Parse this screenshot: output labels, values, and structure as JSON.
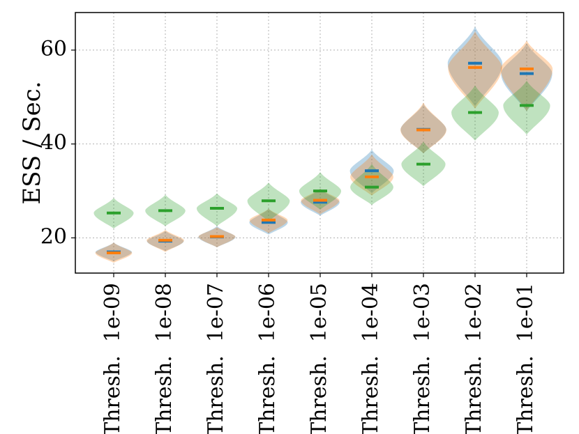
{
  "chart_data": {
    "type": "violin",
    "title": "",
    "xlabel": "",
    "ylabel": "ESS / Sec.",
    "ylim": [
      12.5,
      68
    ],
    "yticks": [
      20,
      40,
      60
    ],
    "grid": true,
    "legend": "none",
    "categories": [
      "Thresh. 1e-09",
      "Thresh. 1e-08",
      "Thresh. 1e-07",
      "Thresh. 1e-06",
      "Thresh. 1e-05",
      "Thresh. 1e-04",
      "Thresh. 1e-03",
      "Thresh. 1e-02",
      "Thresh. 1e-01"
    ],
    "series": [
      {
        "color": "#1f77b4",
        "medians": [
          17.0,
          19.3,
          20.2,
          23.3,
          27.6,
          34.3,
          43.1,
          57.2,
          55.0
        ],
        "mins": [
          15.0,
          17.2,
          18.0,
          20.7,
          24.7,
          29.5,
          38.0,
          48.0,
          47.0
        ],
        "maxs": [
          19.0,
          21.5,
          22.5,
          26.2,
          30.5,
          38.8,
          48.5,
          65.0,
          61.5
        ]
      },
      {
        "color": "#ff7f0e",
        "medians": [
          16.8,
          19.5,
          20.3,
          23.8,
          28.0,
          33.0,
          43.0,
          56.3,
          56.0
        ],
        "mins": [
          14.7,
          17.0,
          18.0,
          21.0,
          25.0,
          29.0,
          38.0,
          47.5,
          47.0
        ],
        "maxs": [
          19.0,
          21.7,
          22.3,
          26.2,
          30.5,
          37.8,
          48.8,
          64.0,
          62.0
        ]
      },
      {
        "color": "#2ca02c",
        "medians": [
          25.3,
          25.8,
          26.3,
          27.9,
          30.0,
          30.8,
          35.7,
          46.7,
          48.2
        ],
        "mins": [
          22.0,
          22.5,
          22.5,
          23.5,
          26.0,
          27.0,
          31.0,
          40.7,
          42.0
        ],
        "maxs": [
          28.5,
          29.2,
          29.5,
          31.8,
          34.0,
          35.8,
          40.5,
          52.5,
          53.5
        ]
      }
    ]
  }
}
